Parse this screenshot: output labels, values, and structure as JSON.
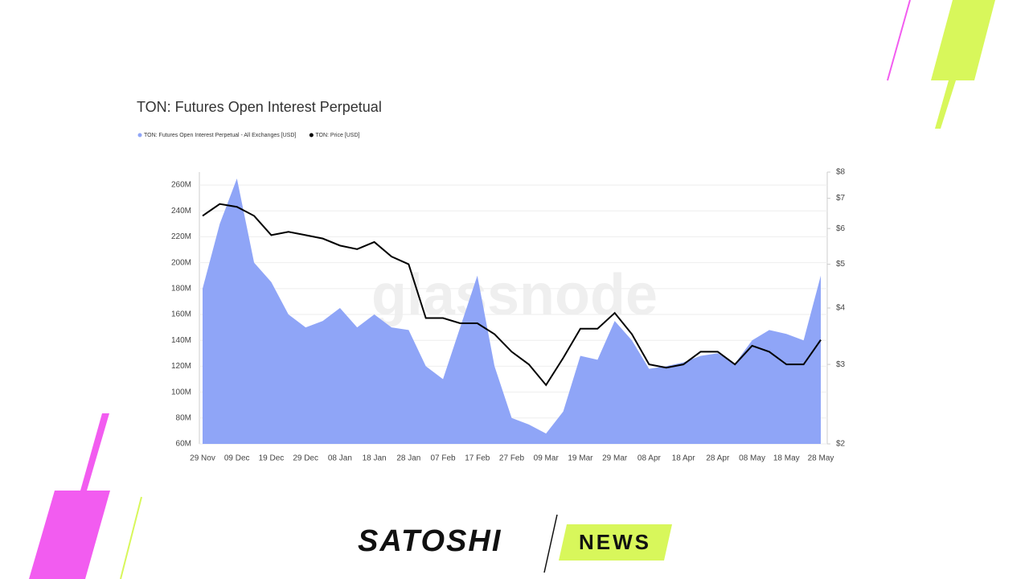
{
  "chart_data": {
    "type": "area-line",
    "title": "TON: Futures Open Interest Perpetual",
    "watermark": "glassnode",
    "categories": [
      "29 Nov",
      null,
      "09 Dec",
      null,
      "19 Dec",
      null,
      "29 Dec",
      null,
      "08 Jan",
      null,
      "18 Jan",
      null,
      "28 Jan",
      null,
      "07 Feb",
      null,
      "17 Feb",
      null,
      "27 Feb",
      null,
      "09 Mar",
      null,
      "19 Mar",
      null,
      "29 Mar",
      null,
      "08 Apr",
      null,
      "18 Apr",
      null,
      "28 Apr",
      null,
      "08 May",
      null,
      "18 May",
      null,
      "28 May"
    ],
    "series": [
      {
        "name": "TON: Futures Open Interest Perpetual - All Exchanges [USD]",
        "color": "#8fa5f7",
        "axis": "y",
        "values": [
          180000000,
          230000000,
          265000000,
          200000000,
          185000000,
          160000000,
          150000000,
          155000000,
          165000000,
          150000000,
          160000000,
          150000000,
          148000000,
          120000000,
          110000000,
          150000000,
          190000000,
          120000000,
          80000000,
          75000000,
          68000000,
          85000000,
          128000000,
          125000000,
          155000000,
          140000000,
          118000000,
          120000000,
          123000000,
          128000000,
          130000000,
          122000000,
          140000000,
          148000000,
          145000000,
          140000000,
          190000000
        ]
      },
      {
        "name": "TON: Price [USD]",
        "color": "#000000",
        "axis": "y2",
        "values": [
          6.4,
          6.8,
          6.7,
          6.4,
          5.8,
          5.9,
          5.8,
          5.7,
          5.5,
          5.4,
          5.6,
          5.2,
          5.0,
          3.8,
          3.8,
          3.7,
          3.7,
          3.5,
          3.2,
          3.0,
          2.7,
          3.1,
          3.6,
          3.6,
          3.9,
          3.5,
          3.0,
          2.95,
          3.0,
          3.2,
          3.2,
          3.0,
          3.3,
          3.2,
          3.0,
          3.0,
          3.4
        ]
      }
    ],
    "ylim": [
      60000000,
      270000000
    ],
    "yticks": [
      {
        "value": 60000000,
        "label": "60M"
      },
      {
        "value": 80000000,
        "label": "80M"
      },
      {
        "value": 100000000,
        "label": "100M"
      },
      {
        "value": 120000000,
        "label": "120M"
      },
      {
        "value": 140000000,
        "label": "140M"
      },
      {
        "value": 160000000,
        "label": "160M"
      },
      {
        "value": 180000000,
        "label": "180M"
      },
      {
        "value": 200000000,
        "label": "200M"
      },
      {
        "value": 220000000,
        "label": "220M"
      },
      {
        "value": 240000000,
        "label": "240M"
      },
      {
        "value": 260000000,
        "label": "260M"
      }
    ],
    "y2lim": [
      2,
      8
    ],
    "y2log": true,
    "y2ticks": [
      {
        "value": 2,
        "label": "$2"
      },
      {
        "value": 3,
        "label": "$3"
      },
      {
        "value": 4,
        "label": "$4"
      },
      {
        "value": 5,
        "label": "$5"
      },
      {
        "value": 6,
        "label": "$6"
      },
      {
        "value": 7,
        "label": "$7"
      },
      {
        "value": 8,
        "label": "$8"
      }
    ],
    "grid": true
  },
  "branding": {
    "name": "SATOSHI",
    "tag": "NEWS"
  }
}
